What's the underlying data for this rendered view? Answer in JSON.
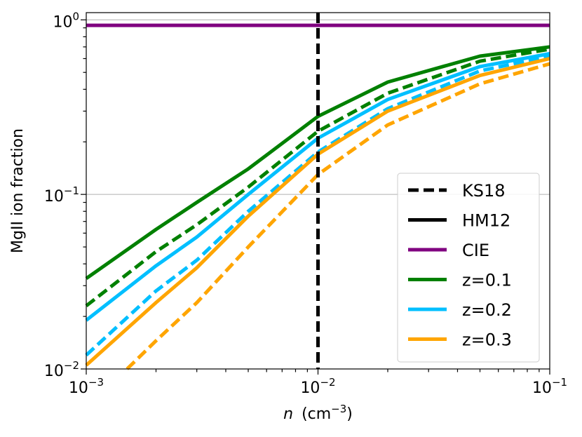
{
  "chart_data": {
    "type": "line",
    "title": "",
    "xscale": "log",
    "yscale": "log",
    "xlim": [
      0.001,
      0.1
    ],
    "ylim": [
      0.01,
      1.1
    ],
    "xlabel": {
      "italic": "n",
      "unit": "(cm",
      "unit_exp": "−3",
      "unit_close": ")"
    },
    "ylabel": "MgII ion fraction",
    "xticks": [
      {
        "value": 0.001,
        "base": "10",
        "exp": "−3"
      },
      {
        "value": 0.01,
        "base": "10",
        "exp": "−2"
      },
      {
        "value": 0.1,
        "base": "10",
        "exp": "−1"
      }
    ],
    "yticks": [
      {
        "value": 0.01,
        "base": "10",
        "exp": "−2"
      },
      {
        "value": 0.1,
        "base": "10",
        "exp": "−1"
      },
      {
        "value": 1,
        "base": "10",
        "exp": "0"
      }
    ],
    "hgrid": [
      0.1,
      1
    ],
    "vline": {
      "x": 0.01,
      "color": "#000000",
      "style": "dashed"
    },
    "legend_position": "lower-right",
    "legend": [
      {
        "label": "KS18",
        "color": "#000000",
        "style": "dashed"
      },
      {
        "label": "HM12",
        "color": "#000000",
        "style": "solid"
      },
      {
        "label": "CIE",
        "color": "#800080",
        "style": "solid"
      },
      {
        "label": "z=0.1",
        "color": "#008000",
        "style": "solid"
      },
      {
        "label": "z=0.2",
        "color": "#00bfff",
        "style": "solid"
      },
      {
        "label": "z=0.3",
        "color": "#ffa500",
        "style": "solid"
      }
    ],
    "series": [
      {
        "name": "CIE",
        "color": "#800080",
        "style": "solid",
        "x": [
          0.001,
          0.1
        ],
        "y": [
          0.93,
          0.93
        ]
      },
      {
        "name": "HM12 z=0.1",
        "color": "#008000",
        "style": "solid",
        "x": [
          0.001,
          0.002,
          0.003,
          0.005,
          0.01,
          0.02,
          0.05,
          0.1
        ],
        "y": [
          0.033,
          0.063,
          0.09,
          0.14,
          0.28,
          0.44,
          0.62,
          0.7
        ]
      },
      {
        "name": "KS18 z=0.1",
        "color": "#008000",
        "style": "dashed",
        "x": [
          0.001,
          0.002,
          0.003,
          0.005,
          0.01,
          0.02,
          0.05,
          0.1
        ],
        "y": [
          0.023,
          0.047,
          0.067,
          0.11,
          0.23,
          0.38,
          0.58,
          0.68
        ]
      },
      {
        "name": "HM12 z=0.2",
        "color": "#00bfff",
        "style": "solid",
        "x": [
          0.001,
          0.002,
          0.003,
          0.005,
          0.01,
          0.02,
          0.05,
          0.1
        ],
        "y": [
          0.019,
          0.039,
          0.057,
          0.1,
          0.21,
          0.35,
          0.54,
          0.64
        ]
      },
      {
        "name": "KS18 z=0.2",
        "color": "#00bfff",
        "style": "dashed",
        "x": [
          0.001,
          0.002,
          0.003,
          0.005,
          0.01,
          0.02,
          0.05,
          0.1
        ],
        "y": [
          0.012,
          0.028,
          0.042,
          0.08,
          0.175,
          0.31,
          0.51,
          0.62
        ]
      },
      {
        "name": "HM12 z=0.3",
        "color": "#ffa500",
        "style": "solid",
        "x": [
          0.001,
          0.002,
          0.003,
          0.005,
          0.01,
          0.02,
          0.05,
          0.1
        ],
        "y": [
          0.0105,
          0.024,
          0.038,
          0.075,
          0.17,
          0.3,
          0.48,
          0.6
        ]
      },
      {
        "name": "KS18 z=0.3",
        "color": "#ffa500",
        "style": "dashed",
        "x": [
          0.0015,
          0.002,
          0.003,
          0.005,
          0.01,
          0.02,
          0.05,
          0.1
        ],
        "y": [
          0.01,
          0.0145,
          0.024,
          0.05,
          0.13,
          0.25,
          0.43,
          0.56
        ]
      }
    ]
  }
}
